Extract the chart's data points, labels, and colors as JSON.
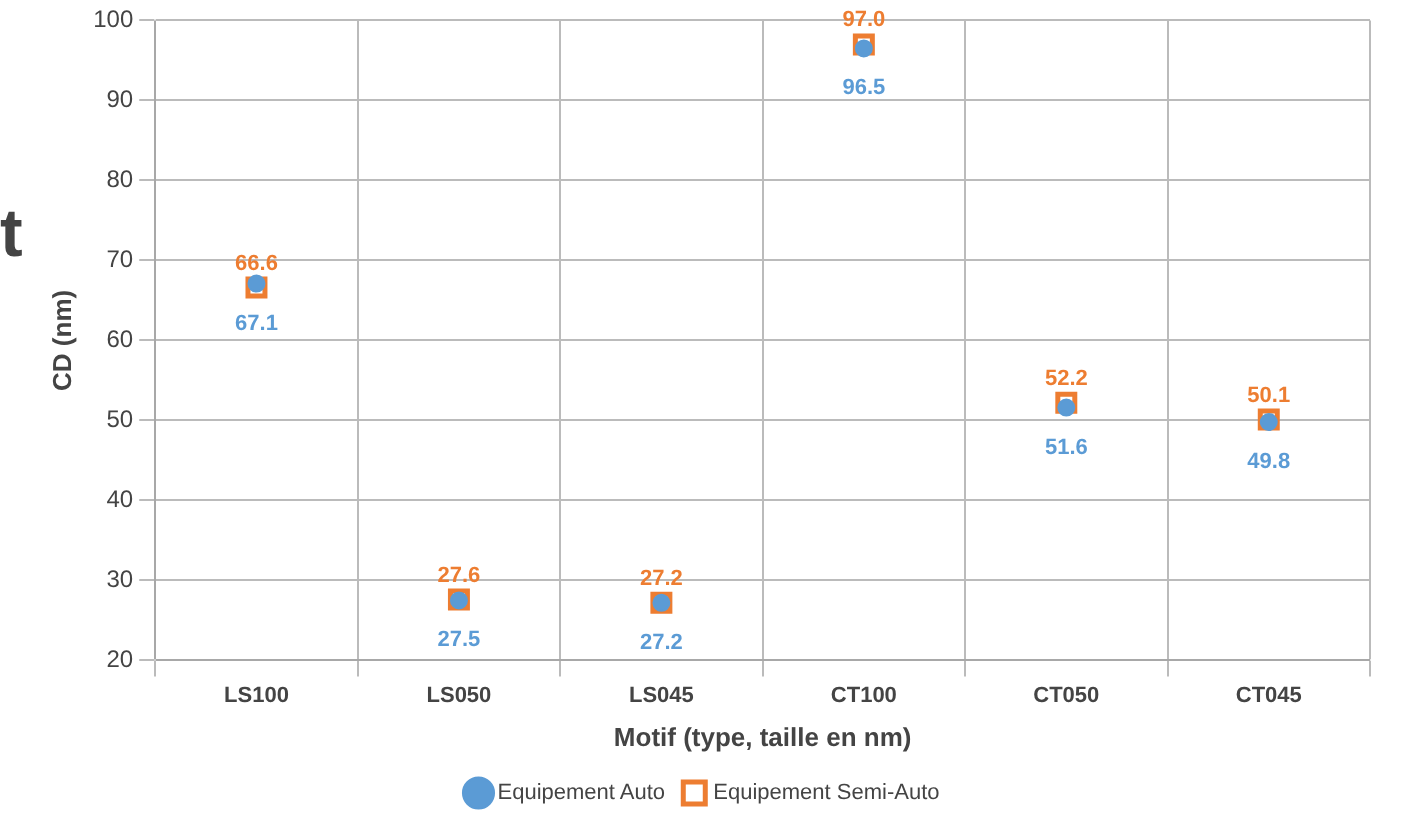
{
  "chart_data": {
    "type": "scatter",
    "xlabel": "Motif (type, taille en nm)",
    "ylabel": "CD (nm)",
    "annotations": [
      "t"
    ],
    "categories": [
      "LS100",
      "LS050",
      "LS045",
      "CT100",
      "CT050",
      "CT045"
    ],
    "series": [
      {
        "name": "Equipement Auto",
        "color": "#5b9bd5",
        "marker": "circle",
        "values": [
          67.1,
          27.5,
          27.2,
          96.5,
          51.6,
          49.8
        ],
        "value_labels": [
          "67.1",
          "27.5",
          "27.2",
          "96.5",
          "51.6",
          "49.8"
        ]
      },
      {
        "name": "Equipement Semi-Auto",
        "color": "#ed7d31",
        "marker": "square",
        "values": [
          66.6,
          27.6,
          27.2,
          97.0,
          52.2,
          50.1
        ],
        "value_labels": [
          "66.6",
          "27.6",
          "27.2",
          "97.0",
          "52.2",
          "50.1"
        ]
      }
    ],
    "ylim": [
      20,
      100
    ],
    "yticks": [
      20,
      30,
      40,
      50,
      60,
      70,
      80,
      90,
      100
    ],
    "grid": true,
    "legend": "bottom"
  }
}
